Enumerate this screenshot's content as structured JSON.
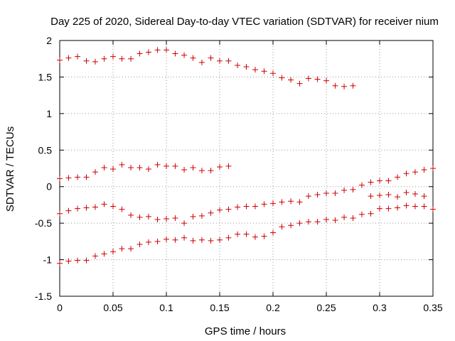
{
  "chart_data": {
    "type": "scatter",
    "title": "Day 225 of 2020, Sidereal Day-to-day VTEC variation (SDTVAR) for receiver nium",
    "xlabel": "GPS time / hours",
    "ylabel": "SDTVAR / TECUs",
    "xlim": [
      0,
      0.35
    ],
    "ylim": [
      -1.5,
      2
    ],
    "xticks": [
      0,
      0.05,
      0.1,
      0.15,
      0.2,
      0.25,
      0.3,
      0.35
    ],
    "xtick_labels": [
      "0",
      "0.05",
      "0.1",
      "0.15",
      "0.2",
      "0.25",
      "0.3",
      "0.35"
    ],
    "yticks": [
      -1.5,
      -1,
      -0.5,
      0,
      0.5,
      1,
      1.5,
      2
    ],
    "ytick_labels": [
      "-1.5",
      "-1",
      "-0.5",
      "0",
      "0.5",
      "1",
      "1.5",
      "2"
    ],
    "grid": true,
    "marker": "+",
    "color": "#cc0000",
    "series": [
      {
        "name": "series-1",
        "x": [
          0,
          0.0083,
          0.0167,
          0.025,
          0.0333,
          0.0417,
          0.05,
          0.0583,
          0.0667,
          0.075,
          0.0833,
          0.0917,
          0.1,
          0.1083,
          0.1167,
          0.125,
          0.1333,
          0.1417,
          0.15,
          0.1583,
          0.1667,
          0.175,
          0.1833,
          0.1917,
          0.2,
          0.2083,
          0.2167,
          0.225,
          0.2333,
          0.2417,
          0.25,
          0.2583,
          0.2667,
          0.275
        ],
        "y": [
          1.73,
          1.76,
          1.78,
          1.72,
          1.71,
          1.75,
          1.78,
          1.75,
          1.75,
          1.82,
          1.84,
          1.87,
          1.87,
          1.82,
          1.8,
          1.76,
          1.7,
          1.76,
          1.72,
          1.72,
          1.66,
          1.64,
          1.6,
          1.58,
          1.55,
          1.49,
          1.46,
          1.41,
          1.48,
          1.47,
          1.45,
          1.38,
          1.37,
          1.38
        ]
      },
      {
        "name": "series-2",
        "x": [
          0,
          0.0083,
          0.0167,
          0.025,
          0.0333,
          0.0417,
          0.05,
          0.0583,
          0.0667,
          0.075,
          0.0833,
          0.0917,
          0.1,
          0.1083,
          0.1167,
          0.125,
          0.1333,
          0.1417,
          0.15,
          0.1583
        ],
        "y": [
          0.11,
          0.12,
          0.13,
          0.13,
          0.2,
          0.26,
          0.24,
          0.3,
          0.26,
          0.26,
          0.24,
          0.3,
          0.28,
          0.28,
          0.23,
          0.26,
          0.22,
          0.22,
          0.27,
          0.28
        ]
      },
      {
        "name": "series-3",
        "x": [
          0,
          0.0083,
          0.0167,
          0.025,
          0.0333,
          0.0417,
          0.05,
          0.0583,
          0.0667,
          0.075,
          0.0833,
          0.0917,
          0.1,
          0.1083,
          0.1167,
          0.125,
          0.1333,
          0.1417,
          0.15,
          0.1583,
          0.1667,
          0.175,
          0.1833,
          0.1917,
          0.2,
          0.2083,
          0.2167,
          0.225,
          0.2333,
          0.2417,
          0.25,
          0.2583,
          0.2667,
          0.275,
          0.2833,
          0.2917,
          0.3,
          0.3083,
          0.3167,
          0.325,
          0.3333,
          0.3417,
          0.35
        ],
        "y": [
          -0.37,
          -0.33,
          -0.3,
          -0.29,
          -0.28,
          -0.24,
          -0.27,
          -0.31,
          -0.39,
          -0.42,
          -0.41,
          -0.45,
          -0.44,
          -0.43,
          -0.5,
          -0.41,
          -0.4,
          -0.36,
          -0.32,
          -0.31,
          -0.28,
          -0.27,
          -0.27,
          -0.24,
          -0.23,
          -0.21,
          -0.2,
          -0.21,
          -0.13,
          -0.11,
          -0.09,
          -0.09,
          -0.05,
          -0.04,
          0.02,
          0.06,
          0.08,
          0.08,
          0.13,
          0.18,
          0.2,
          0.23,
          0.25
        ]
      },
      {
        "name": "series-4",
        "x": [
          0,
          0.0083,
          0.0167,
          0.025,
          0.0333,
          0.0417,
          0.05,
          0.0583,
          0.0667,
          0.075,
          0.0833,
          0.0917,
          0.1,
          0.1083,
          0.1167,
          0.125,
          0.1333,
          0.1417,
          0.15,
          0.1583,
          0.1667,
          0.175,
          0.1833,
          0.1917,
          0.2,
          0.2083,
          0.2167,
          0.225,
          0.2333,
          0.2417,
          0.25,
          0.2583,
          0.2667,
          0.275,
          0.2833,
          0.2917,
          0.3,
          0.3083,
          0.3167,
          0.325,
          0.3333,
          0.3417,
          0.35
        ],
        "y": [
          -1.05,
          -1.02,
          -1.01,
          -1.01,
          -0.95,
          -0.92,
          -0.89,
          -0.85,
          -0.85,
          -0.79,
          -0.76,
          -0.75,
          -0.72,
          -0.73,
          -0.7,
          -0.74,
          -0.73,
          -0.74,
          -0.73,
          -0.7,
          -0.65,
          -0.65,
          -0.69,
          -0.68,
          -0.63,
          -0.55,
          -0.53,
          -0.5,
          -0.48,
          -0.48,
          -0.45,
          -0.46,
          -0.42,
          -0.43,
          -0.38,
          -0.37,
          -0.3,
          -0.3,
          -0.29,
          -0.26,
          -0.27,
          -0.27,
          -0.31
        ]
      },
      {
        "name": "series-5",
        "x": [
          0.2917,
          0.3,
          0.3083,
          0.3167,
          0.325,
          0.3333,
          0.3417
        ],
        "y": [
          -0.13,
          -0.12,
          -0.11,
          -0.14,
          -0.08,
          -0.1,
          -0.13
        ]
      }
    ]
  }
}
